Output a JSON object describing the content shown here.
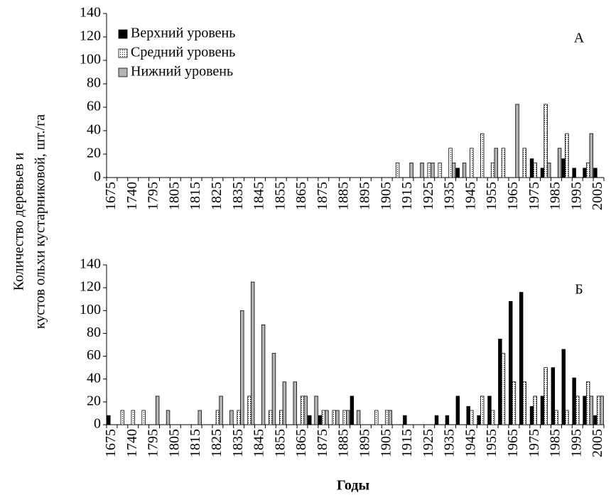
{
  "y_label_lines": [
    "Количество деревьев и",
    "кустов ольхи кустарниковой,  шт./га"
  ],
  "x_label": "Годы",
  "chart_data": [
    {
      "type": "bar",
      "panel_label": "А",
      "legend": "top-left",
      "categories": [
        "1675",
        null,
        "1740",
        null,
        "1795",
        null,
        "1805",
        null,
        "1815",
        null,
        "1825",
        null,
        "1835",
        null,
        "1845",
        null,
        "1855",
        null,
        "1865",
        null,
        "1875",
        null,
        "1885",
        null,
        "1895",
        null,
        "1905",
        null,
        "1915",
        null,
        "1925",
        null,
        "1935",
        null,
        "1945",
        null,
        "1955",
        null,
        "1965",
        null,
        "1975",
        null,
        "1985",
        null,
        "1995",
        null,
        "2005"
      ],
      "series": [
        {
          "name": "Верхний уровень",
          "color": "#000000",
          "pattern": "solid",
          "values": [
            0,
            0,
            0,
            0,
            0,
            0,
            0,
            0,
            0,
            0,
            0,
            0,
            0,
            0,
            0,
            0,
            0,
            0,
            0,
            0,
            0,
            0,
            0,
            0,
            0,
            0,
            0,
            0,
            0,
            0,
            0,
            0,
            0,
            8,
            0,
            0,
            0,
            0,
            0,
            0,
            16,
            8,
            0,
            16,
            8,
            8,
            8
          ]
        },
        {
          "name": "Средний уровень",
          "color": "#ffffff",
          "pattern": "dots",
          "values": [
            0,
            0,
            0,
            0,
            0,
            0,
            0,
            0,
            0,
            0,
            0,
            0,
            0,
            0,
            0,
            0,
            0,
            0,
            0,
            0,
            0,
            0,
            0,
            0,
            0,
            0,
            0,
            12.5,
            0,
            0,
            12.5,
            12.5,
            25,
            0,
            25,
            37.5,
            12.5,
            25,
            0,
            25,
            12.5,
            62.5,
            0,
            37.5,
            0,
            12.5,
            0
          ]
        },
        {
          "name": "Нижний уровень",
          "color": "#b3b3b3",
          "pattern": "solid",
          "values": [
            0,
            0,
            0,
            0,
            0,
            0,
            0,
            0,
            0,
            0,
            0,
            0,
            0,
            0,
            0,
            0,
            0,
            0,
            0,
            0,
            0,
            0,
            0,
            0,
            0,
            0,
            0,
            0,
            12.5,
            12.5,
            12.5,
            0,
            12.5,
            12.5,
            0,
            0,
            25,
            0,
            62.5,
            0,
            0,
            12.5,
            25,
            0,
            0,
            37.5,
            0
          ]
        }
      ],
      "ylim": [
        0,
        140
      ],
      "yticks": [
        0,
        20,
        40,
        60,
        80,
        100,
        120,
        140
      ]
    },
    {
      "type": "bar",
      "panel_label": "Б",
      "categories": [
        "1675",
        null,
        "1740",
        null,
        "1795",
        null,
        "1805",
        null,
        "1815",
        null,
        "1825",
        null,
        "1835",
        null,
        "1845",
        null,
        "1855",
        null,
        "1865",
        null,
        "1875",
        null,
        "1885",
        null,
        "1895",
        null,
        "1905",
        null,
        "1915",
        null,
        "1925",
        null,
        "1935",
        null,
        "1945",
        null,
        "1955",
        null,
        "1965",
        null,
        "1975",
        null,
        "1985",
        null,
        "1995",
        null,
        "2005"
      ],
      "series": [
        {
          "color": "#000000",
          "pattern": "solid",
          "values": [
            8,
            0,
            0,
            0,
            0,
            0,
            0,
            0,
            0,
            0,
            0,
            0,
            0,
            0,
            0,
            0,
            0,
            0,
            0,
            8,
            8,
            0,
            0,
            25,
            0,
            0,
            0,
            0,
            8,
            0,
            0,
            8,
            8,
            25,
            16,
            8,
            25,
            75,
            108,
            116,
            16,
            25,
            50,
            66,
            41,
            25,
            8
          ]
        },
        {
          "color": "#ffffff",
          "pattern": "dots",
          "values": [
            0,
            12.5,
            12.5,
            12.5,
            0,
            0,
            0,
            0,
            0,
            0,
            12.5,
            0,
            12.5,
            25,
            0,
            12.5,
            12.5,
            0,
            25,
            0,
            12.5,
            12.5,
            12.5,
            0,
            0,
            12.5,
            12.5,
            0,
            0,
            0,
            0,
            0,
            0,
            0,
            12.5,
            25,
            12.5,
            62.5,
            37.5,
            37.5,
            25,
            50,
            12.5,
            12.5,
            25,
            37.5,
            25
          ]
        },
        {
          "color": "#b3b3b3",
          "pattern": "solid",
          "values": [
            0,
            0,
            0,
            0,
            25,
            12.5,
            0,
            0,
            12.5,
            0,
            25,
            12.5,
            100,
            125,
            87.5,
            62.5,
            37.5,
            37.5,
            25,
            25,
            12.5,
            12.5,
            12.5,
            12.5,
            0,
            0,
            12.5,
            0,
            0,
            0,
            0,
            0,
            0,
            0,
            0,
            0,
            0,
            0,
            0,
            0,
            0,
            0,
            0,
            0,
            0,
            25,
            25
          ]
        }
      ],
      "ylim": [
        0,
        140
      ],
      "yticks": [
        0,
        20,
        40,
        60,
        80,
        100,
        120,
        140
      ]
    }
  ]
}
